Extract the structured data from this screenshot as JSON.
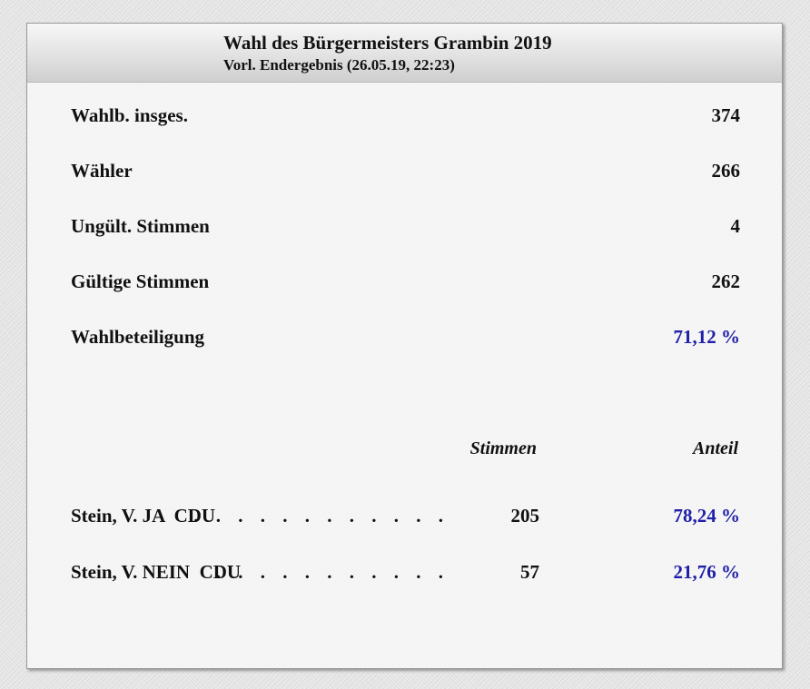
{
  "header": {
    "title": "Wahl des Bürgermeisters Grambin 2019",
    "subtitle": "Vorl. Endergebnis (26.05.19, 22:23)"
  },
  "stats": [
    {
      "label": "Wahlb. insges.",
      "value": "374"
    },
    {
      "label": "Wähler",
      "value": "266"
    },
    {
      "label": "Ungült. Stimmen",
      "value": "4"
    },
    {
      "label": "Gültige Stimmen",
      "value": "262"
    },
    {
      "label": "Wahlbeteiligung",
      "value": "71,12 %"
    }
  ],
  "results": {
    "column_votes": "Stimmen",
    "column_share": "Anteil",
    "candidates": [
      {
        "name": "Stein, V. JA  CDU",
        "dots": ". . . . . . . . . . . .",
        "votes": "205",
        "share": "78,24 %"
      },
      {
        "name": "Stein, V. NEIN  CDU",
        "dots": ". . . . . . . . . . .",
        "votes": "57",
        "share": "21,76 %"
      }
    ]
  },
  "colors": {
    "accent_blue": "#1f1fa8",
    "text": "#111111",
    "panel": "#f6f6f6",
    "background": "#e4e4e4"
  }
}
